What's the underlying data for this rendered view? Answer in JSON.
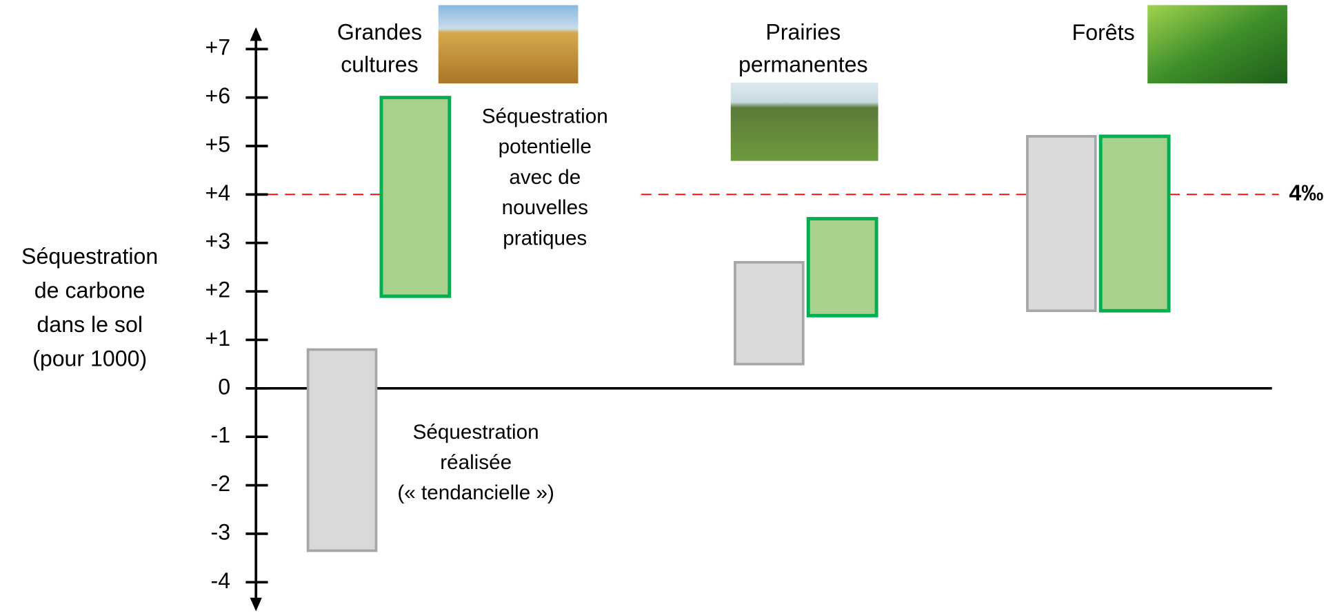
{
  "chart_data": {
    "type": "range-bar",
    "y_label": [
      "Séquestration",
      "de carbone",
      "dans le sol",
      "(pour 1000)"
    ],
    "categories": [
      "Grandes cultures",
      "Prairies permanentes",
      "Forêts"
    ],
    "series": [
      {
        "name": [
          "Séquestration",
          "réalisée",
          "(« tendancielle »)"
        ],
        "color": "#d9d9d9",
        "stroke": "#a6a6a6",
        "label_color": "#a6a6a6",
        "values": [
          [
            -3.35,
            0.8
          ],
          [
            0.5,
            2.6
          ],
          [
            1.6,
            5.2
          ]
        ]
      },
      {
        "name": [
          "Séquestration",
          "potentielle",
          "avec de",
          "nouvelles",
          "pratiques"
        ],
        "color": "#a9d18e",
        "stroke": "#00b050",
        "label_color": "#00b050",
        "values": [
          [
            1.9,
            6.0
          ],
          [
            1.5,
            3.5
          ],
          [
            1.6,
            5.2
          ]
        ]
      }
    ],
    "reference_line": {
      "value": 4,
      "label": "4‰",
      "color": "#ff0000"
    },
    "ylim": [
      -4.6,
      7.45
    ],
    "yticks": [
      -4,
      -3,
      -2,
      -1,
      0,
      {
        "value": 1,
        "label": "+1"
      },
      {
        "value": 2,
        "label": "+2"
      },
      {
        "value": 3,
        "label": "+3"
      },
      {
        "value": 4,
        "label": "+4"
      },
      {
        "value": 5,
        "label": "+5"
      },
      {
        "value": 6,
        "label": "+6"
      },
      {
        "value": 7,
        "label": "+7"
      }
    ]
  }
}
